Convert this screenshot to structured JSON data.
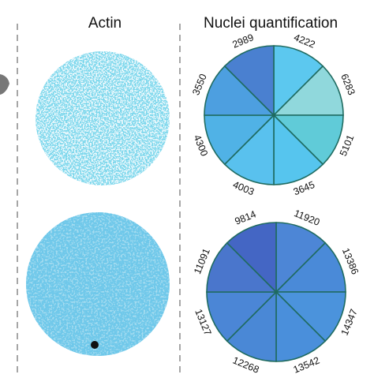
{
  "header": {
    "left_title": "Actin",
    "right_title": "Nuclei quantification"
  },
  "pies": [
    {
      "labels": [
        "4222",
        "6283",
        "5101",
        "3645",
        "4003",
        "4300",
        "3550",
        "2989"
      ]
    },
    {
      "labels": [
        "11920",
        "13386",
        "14347",
        "13542",
        "12268",
        "13127",
        "11091",
        "9814"
      ]
    }
  ]
}
